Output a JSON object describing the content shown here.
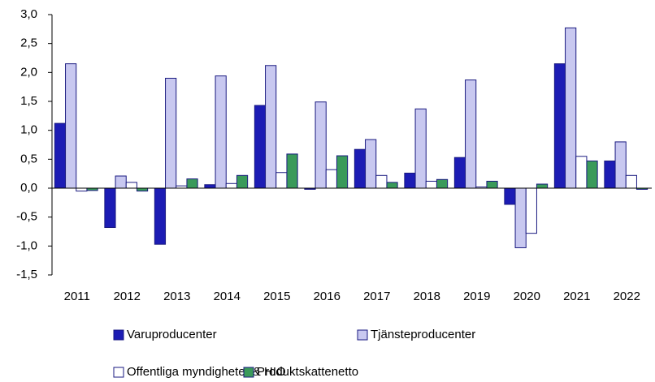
{
  "chart_data": {
    "type": "bar",
    "categories": [
      "2011",
      "2012",
      "2013",
      "2014",
      "2015",
      "2016",
      "2017",
      "2018",
      "2019",
      "2020",
      "2021",
      "2022"
    ],
    "series": [
      {
        "name": "Varuproducenter",
        "color": "#1c1cb4",
        "values": [
          1.12,
          -0.68,
          -0.97,
          0.06,
          1.43,
          -0.02,
          0.67,
          0.26,
          0.53,
          -0.28,
          2.15,
          0.47
        ]
      },
      {
        "name": "Tjänsteproducenter",
        "color": "#c8c8f0",
        "values": [
          2.15,
          0.21,
          1.9,
          1.94,
          2.12,
          1.49,
          0.84,
          1.37,
          1.87,
          -1.03,
          2.77,
          0.8
        ]
      },
      {
        "name": "Offentliga myndigheter & HIO",
        "color": "#ffffff",
        "values": [
          -0.05,
          0.1,
          0.04,
          0.08,
          0.27,
          0.32,
          0.22,
          0.12,
          0.02,
          -0.78,
          0.55,
          0.22
        ]
      },
      {
        "name": "Produktskattenetto",
        "color": "#3a9a5a",
        "values": [
          -0.04,
          -0.05,
          0.16,
          0.22,
          0.59,
          0.56,
          0.1,
          0.15,
          0.12,
          0.07,
          0.47,
          -0.02
        ]
      }
    ],
    "ylim": [
      -1.5,
      3.0
    ],
    "yticks": [
      {
        "value": -1.5,
        "label": "-1,5"
      },
      {
        "value": -1.0,
        "label": "-1,0"
      },
      {
        "value": -0.5,
        "label": "-0,5"
      },
      {
        "value": 0,
        "label": "0,0"
      },
      {
        "value": 0.5,
        "label": "0,5"
      },
      {
        "value": 1.0,
        "label": "1,0"
      },
      {
        "value": 1.5,
        "label": "1,5"
      },
      {
        "value": 2.0,
        "label": "2,0"
      },
      {
        "value": 2.5,
        "label": "2,5"
      },
      {
        "value": 3.0,
        "label": "3,0"
      }
    ],
    "grid": false,
    "legend": "bottom"
  }
}
